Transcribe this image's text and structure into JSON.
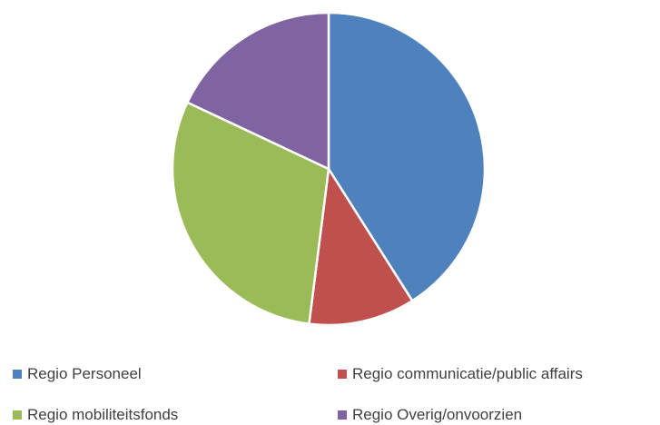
{
  "chart_data": {
    "type": "pie",
    "series": [
      {
        "labels": [
          "Regio Personeel",
          "Regio communicatie/public affairs",
          "Regio mobiliteitsfonds",
          "Regio Overig/onvoorzien"
        ],
        "values": [
          41,
          11,
          30,
          18
        ],
        "colors": [
          "#4F81BD",
          "#C0504D",
          "#9BBB59",
          "#8064A2"
        ]
      }
    ],
    "start_angle_deg": 0,
    "direction": "clockwise",
    "legend_position": "bottom",
    "slice_border_color": "#FFFFFF"
  }
}
